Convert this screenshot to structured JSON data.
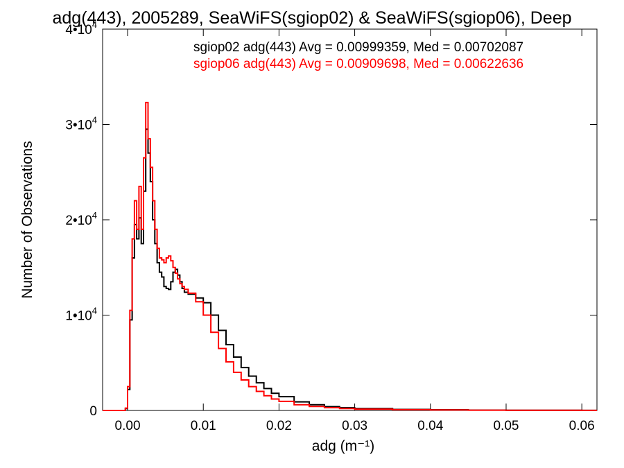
{
  "chart_data": {
    "type": "line",
    "title": "adg(443), 2005289, SeaWiFS(sgiop02) & SeaWiFS(sgiop06), Deep",
    "xlabel": "adg (m⁻¹)",
    "ylabel": "Number of Observations",
    "xlim": [
      -0.0033,
      0.062
    ],
    "ylim": [
      0,
      40000
    ],
    "x_ticks": [
      {
        "value": 0.0,
        "label": "0.00"
      },
      {
        "value": 0.01,
        "label": "0.01"
      },
      {
        "value": 0.02,
        "label": "0.02"
      },
      {
        "value": 0.03,
        "label": "0.03"
      },
      {
        "value": 0.04,
        "label": "0.04"
      },
      {
        "value": 0.05,
        "label": "0.05"
      },
      {
        "value": 0.06,
        "label": "0.06"
      }
    ],
    "y_ticks": [
      {
        "value": 0,
        "base": "0",
        "exp": ""
      },
      {
        "value": 10000,
        "base": "1•10",
        "exp": "4"
      },
      {
        "value": 20000,
        "base": "2•10",
        "exp": "4"
      },
      {
        "value": 30000,
        "base": "3•10",
        "exp": "4"
      },
      {
        "value": 40000,
        "base": "4•10",
        "exp": "4"
      }
    ],
    "grid": false,
    "legend_placement": "top-right",
    "series": [
      {
        "name": "sgiop02 adg(443) Avg = 0.00999359, Med = 0.00702087",
        "color": "#000000",
        "x": [
          -0.0033,
          -0.0003,
          0.0,
          0.0003,
          0.0006,
          0.0009,
          0.0012,
          0.0015,
          0.0018,
          0.0021,
          0.0024,
          0.0027,
          0.003,
          0.0033,
          0.0036,
          0.0039,
          0.0042,
          0.0045,
          0.0048,
          0.0051,
          0.0054,
          0.0057,
          0.006,
          0.0063,
          0.0066,
          0.0069,
          0.0072,
          0.0075,
          0.008,
          0.009,
          0.01,
          0.011,
          0.012,
          0.013,
          0.014,
          0.015,
          0.016,
          0.017,
          0.018,
          0.019,
          0.02,
          0.022,
          0.024,
          0.026,
          0.028,
          0.03,
          0.035,
          0.04,
          0.045,
          0.05,
          0.055,
          0.06,
          0.062
        ],
        "y": [
          0,
          200,
          2200,
          9500,
          16000,
          19500,
          18000,
          20200,
          17500,
          23000,
          29500,
          27000,
          24000,
          20000,
          17500,
          15500,
          14500,
          14000,
          13000,
          12800,
          12700,
          13500,
          14500,
          14800,
          14200,
          13500,
          12800,
          12400,
          12200,
          11800,
          11300,
          10000,
          8400,
          6900,
          5600,
          4500,
          3600,
          2900,
          2300,
          1800,
          1450,
          900,
          600,
          400,
          280,
          200,
          110,
          70,
          40,
          25,
          15,
          10,
          10
        ]
      },
      {
        "name": "sgiop06 adg(443) Avg = 0.00909698, Med = 0.00622636",
        "color": "#ff0000",
        "x": [
          -0.0033,
          -0.0003,
          0.0,
          0.0003,
          0.0006,
          0.0009,
          0.0012,
          0.0015,
          0.0018,
          0.0021,
          0.0024,
          0.0027,
          0.003,
          0.0033,
          0.0036,
          0.0039,
          0.0042,
          0.0045,
          0.0048,
          0.0051,
          0.0054,
          0.0057,
          0.006,
          0.0063,
          0.0066,
          0.0069,
          0.0072,
          0.0075,
          0.008,
          0.009,
          0.01,
          0.011,
          0.012,
          0.013,
          0.014,
          0.015,
          0.016,
          0.017,
          0.018,
          0.019,
          0.02,
          0.022,
          0.024,
          0.026,
          0.028,
          0.03,
          0.035,
          0.04,
          0.045,
          0.05,
          0.055,
          0.06,
          0.062
        ],
        "y": [
          0,
          250,
          2500,
          10500,
          18000,
          22000,
          19000,
          23500,
          19000,
          26500,
          32300,
          28500,
          25500,
          22000,
          19000,
          17000,
          16000,
          15800,
          15500,
          16000,
          16200,
          15700,
          15000,
          14400,
          13800,
          13300,
          13000,
          12700,
          12300,
          11400,
          10000,
          8200,
          6500,
          5100,
          4000,
          3200,
          2500,
          2000,
          1550,
          1200,
          950,
          600,
          420,
          290,
          200,
          140,
          80,
          50,
          30,
          20,
          12,
          8,
          8
        ]
      }
    ]
  }
}
